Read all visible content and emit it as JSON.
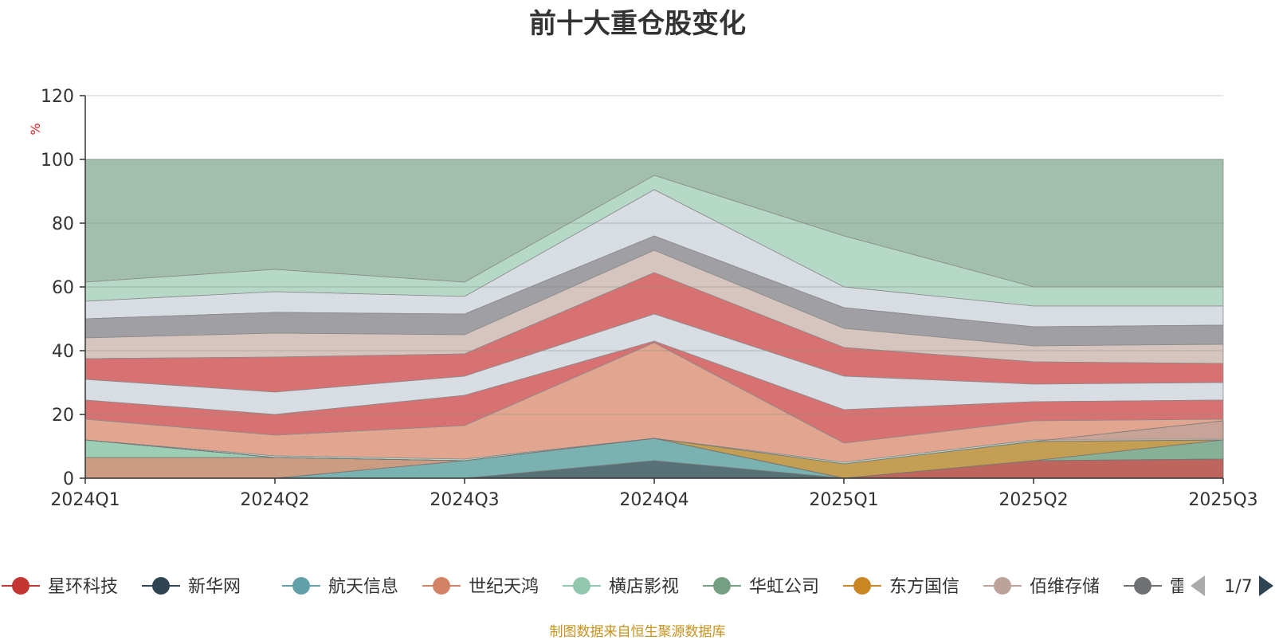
{
  "chart_data": {
    "type": "area",
    "title": "前十大重仓股变化",
    "ylabel": "%",
    "ylim": [
      0,
      120
    ],
    "yticks": [
      0,
      20,
      40,
      60,
      80,
      100,
      120
    ],
    "categories": [
      "2024Q1",
      "2024Q2",
      "2024Q3",
      "2024Q4",
      "2025Q1",
      "2025Q2",
      "2025Q3"
    ],
    "series": [
      {
        "name": "星环科技",
        "color": "#c23531",
        "values": [
          0,
          0,
          0,
          0,
          0,
          5.5,
          6
        ]
      },
      {
        "name": "新华网",
        "color": "#2f4554",
        "values": [
          0,
          0,
          0,
          5.5,
          0,
          0,
          0
        ]
      },
      {
        "name": "航天信息",
        "color": "#61a0a8",
        "values": [
          0,
          0,
          5.5,
          7,
          0,
          0,
          0
        ]
      },
      {
        "name": "世纪天鸿",
        "color": "#d48265",
        "values": [
          6.5,
          6.5,
          0,
          0,
          0,
          0,
          0
        ]
      },
      {
        "name": "横店影视",
        "color": "#91c7ae",
        "values": [
          5.5,
          0,
          0,
          0,
          0,
          0,
          0
        ]
      },
      {
        "name": "华虹公司",
        "color": "#749f83",
        "values": [
          0,
          0,
          0,
          0,
          0,
          0,
          6
        ]
      },
      {
        "name": "东方国信",
        "color": "#ca8622",
        "values": [
          0,
          0,
          0,
          0,
          4.5,
          6,
          0
        ]
      },
      {
        "name": "佰维存储",
        "color": "#bda29a",
        "values": [
          0,
          0,
          0,
          0,
          0,
          0,
          6
        ]
      }
    ],
    "legend_position": "bottom",
    "legend_page": "1/7",
    "legend_truncated_item": "雷",
    "legend_truncated_color": "#6e7074"
  },
  "footer": {
    "source": "制图数据来自恒生聚源数据库"
  }
}
